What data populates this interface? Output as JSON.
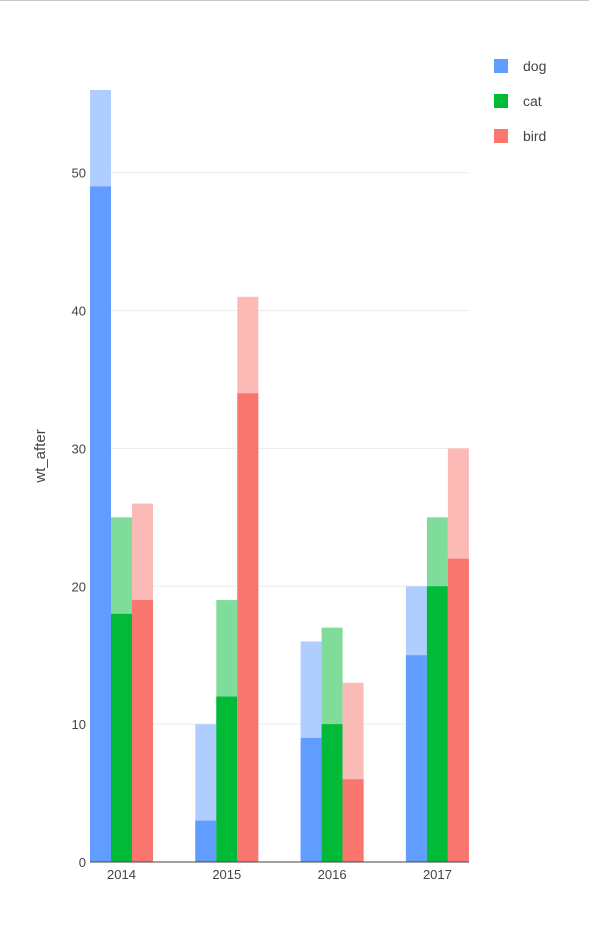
{
  "chart_data": {
    "type": "bar",
    "subtype": "grouped bars with overlaid lighter bars",
    "categories": [
      "2014",
      "2015",
      "2016",
      "2017"
    ],
    "ylabel": "wt_after",
    "ylim": [
      0,
      56
    ],
    "yticks": [
      "0",
      "10",
      "20",
      "30",
      "40",
      "50"
    ],
    "grid": true,
    "legend_position": "top-right",
    "series": [
      {
        "name": "dog",
        "color": "#619CFF",
        "light_color": "#B0CDFF",
        "values": [
          49,
          3,
          9,
          15
        ],
        "overlay_values": [
          56,
          10,
          16,
          20
        ]
      },
      {
        "name": "cat",
        "color": "#00BA38",
        "light_color": "#7FDC9B",
        "values": [
          18,
          12,
          10,
          20
        ],
        "overlay_values": [
          25,
          19,
          17,
          25
        ]
      },
      {
        "name": "bird",
        "color": "#F8766D",
        "light_color": "#FBBAB6",
        "values": [
          19,
          34,
          6,
          22
        ],
        "overlay_values": [
          26,
          41,
          13,
          30
        ]
      }
    ]
  }
}
